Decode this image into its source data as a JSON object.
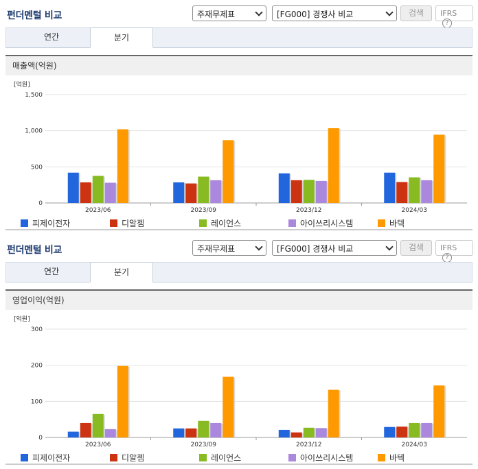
{
  "sections": [
    {
      "title": "펀더멘털 비교",
      "statement_select": "주재무제표",
      "peer_select": "[FG000] 경쟁사 비교",
      "search_label": "검색",
      "ifrs_label": "IFRS",
      "help_label": "?",
      "tabs": [
        "연간",
        "분기"
      ],
      "active_tab": 1,
      "chart_header": "매출액(억원)"
    },
    {
      "title": "펀더멘털 비교",
      "statement_select": "주재무제표",
      "peer_select": "[FG000] 경쟁사 비교",
      "search_label": "검색",
      "ifrs_label": "IFRS",
      "help_label": "?",
      "tabs": [
        "연간",
        "분기"
      ],
      "active_tab": 1,
      "chart_header": "영업이익(억원)"
    }
  ],
  "chart_data": [
    {
      "type": "bar",
      "unit_label": "[억원]",
      "categories": [
        "2023/06",
        "2023/09",
        "2023/12",
        "2024/03"
      ],
      "ylim": [
        0,
        1500
      ],
      "yticks": [
        0,
        500,
        1000,
        1500
      ],
      "ytick_labels": [
        "0",
        "500",
        "1,000",
        "1,500"
      ],
      "grid": true,
      "legend_position": "bottom",
      "series": [
        {
          "name": "피제이전자",
          "color": "#2266dd",
          "values": [
            420,
            285,
            410,
            420
          ]
        },
        {
          "name": "디알젬",
          "color": "#cc3311",
          "values": [
            285,
            270,
            315,
            290
          ]
        },
        {
          "name": "레이언스",
          "color": "#88bb22",
          "values": [
            375,
            365,
            320,
            355
          ]
        },
        {
          "name": "아이쓰리시스템",
          "color": "#aa88dd",
          "values": [
            280,
            315,
            305,
            315
          ]
        },
        {
          "name": "바텍",
          "color": "#ff9900",
          "values": [
            1020,
            870,
            1035,
            945
          ]
        }
      ]
    },
    {
      "type": "bar",
      "unit_label": "[억원]",
      "categories": [
        "2023/06",
        "2023/09",
        "2023/12",
        "2024/03"
      ],
      "ylim": [
        0,
        300
      ],
      "yticks": [
        0,
        100,
        200,
        300
      ],
      "ytick_labels": [
        "0",
        "100",
        "200",
        "300"
      ],
      "grid": true,
      "legend_position": "bottom",
      "series": [
        {
          "name": "피제이전자",
          "color": "#2266dd",
          "values": [
            16,
            25,
            21,
            29
          ]
        },
        {
          "name": "디알젬",
          "color": "#cc3311",
          "values": [
            40,
            25,
            14,
            30
          ]
        },
        {
          "name": "레이언스",
          "color": "#88bb22",
          "values": [
            65,
            46,
            27,
            40
          ]
        },
        {
          "name": "아이쓰리시스템",
          "color": "#aa88dd",
          "values": [
            23,
            40,
            26,
            40
          ]
        },
        {
          "name": "바텍",
          "color": "#ff9900",
          "values": [
            198,
            168,
            132,
            144
          ]
        }
      ]
    }
  ]
}
